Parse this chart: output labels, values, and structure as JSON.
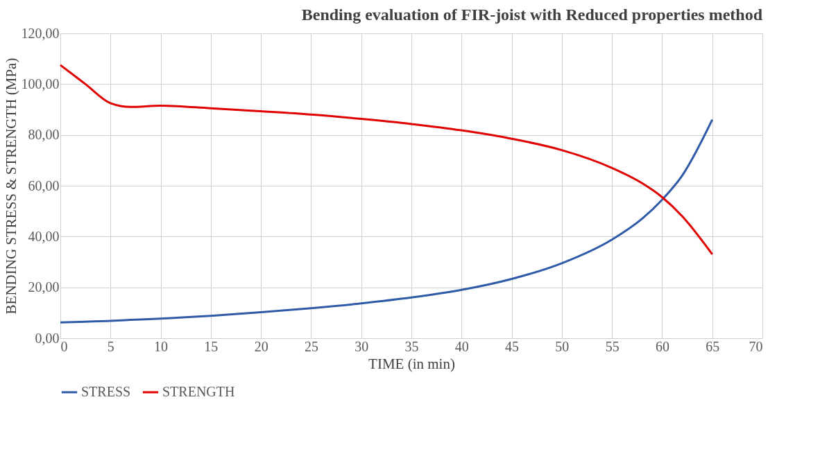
{
  "chart_data": {
    "type": "line",
    "title": "Bending evaluation of FIR-joist with Reduced properties method",
    "xlabel": "TIME (in min)",
    "ylabel": "BENDING STRESS & STRENGTH (MPa)",
    "x": [
      0,
      2.5,
      5,
      7,
      10,
      15,
      20,
      25,
      30,
      35,
      40,
      45,
      50,
      55,
      58,
      60,
      62,
      65
    ],
    "series": [
      {
        "name": "STRESS",
        "color": "#2e5aa8",
        "values": [
          6.2,
          6.5,
          6.8,
          7.2,
          7.7,
          8.8,
          10.2,
          11.8,
          13.7,
          16,
          19,
          23.3,
          29.5,
          38.8,
          47,
          54.5,
          64,
          86
        ]
      },
      {
        "name": "STRENGTH",
        "color": "#e00000",
        "values": [
          107.5,
          100,
          92.5,
          91,
          91.5,
          90.5,
          89.3,
          88,
          86.3,
          84.3,
          81.8,
          78.5,
          74,
          67,
          61,
          55.5,
          48,
          33
        ]
      }
    ],
    "xlim": [
      0,
      70
    ],
    "xticks": [
      0,
      5,
      10,
      15,
      20,
      25,
      30,
      35,
      40,
      45,
      50,
      55,
      60,
      65,
      70
    ],
    "ylim": [
      0,
      120
    ],
    "yticks": [
      {
        "value": 0,
        "label": "0,00"
      },
      {
        "value": 20,
        "label": "20,00"
      },
      {
        "value": 40,
        "label": "40,00"
      },
      {
        "value": 60,
        "label": "60,00"
      },
      {
        "value": 80,
        "label": "80,00"
      },
      {
        "value": 100,
        "label": "100,00"
      },
      {
        "value": 120,
        "label": "120,00"
      }
    ],
    "grid": true,
    "legend": "bottom",
    "marker": "none",
    "line_style": "solid"
  }
}
